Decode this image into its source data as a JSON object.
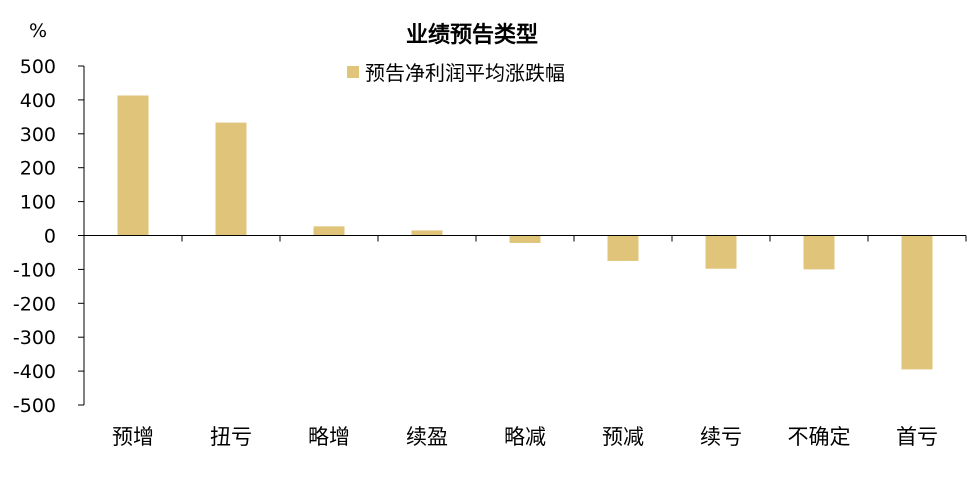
{
  "chart_data": {
    "type": "bar",
    "title": "业绩预告类型",
    "unit_label": "%",
    "categories": [
      "预增",
      "扭亏",
      "略增",
      "续盈",
      "略减",
      "预减",
      "续亏",
      "不确定",
      "首亏"
    ],
    "series": [
      {
        "name": "预告净利润平均涨跌幅",
        "values": [
          413,
          333,
          27,
          15,
          -22,
          -75,
          -98,
          -100,
          -395
        ]
      }
    ],
    "ylim": [
      -500,
      500
    ],
    "yticks": [
      500,
      400,
      300,
      200,
      100,
      0,
      -100,
      -200,
      -300,
      -400,
      -500
    ],
    "grid": false,
    "legend_position": "top-center",
    "bar_color": "#E0C47A",
    "axis_color": "#000000"
  }
}
